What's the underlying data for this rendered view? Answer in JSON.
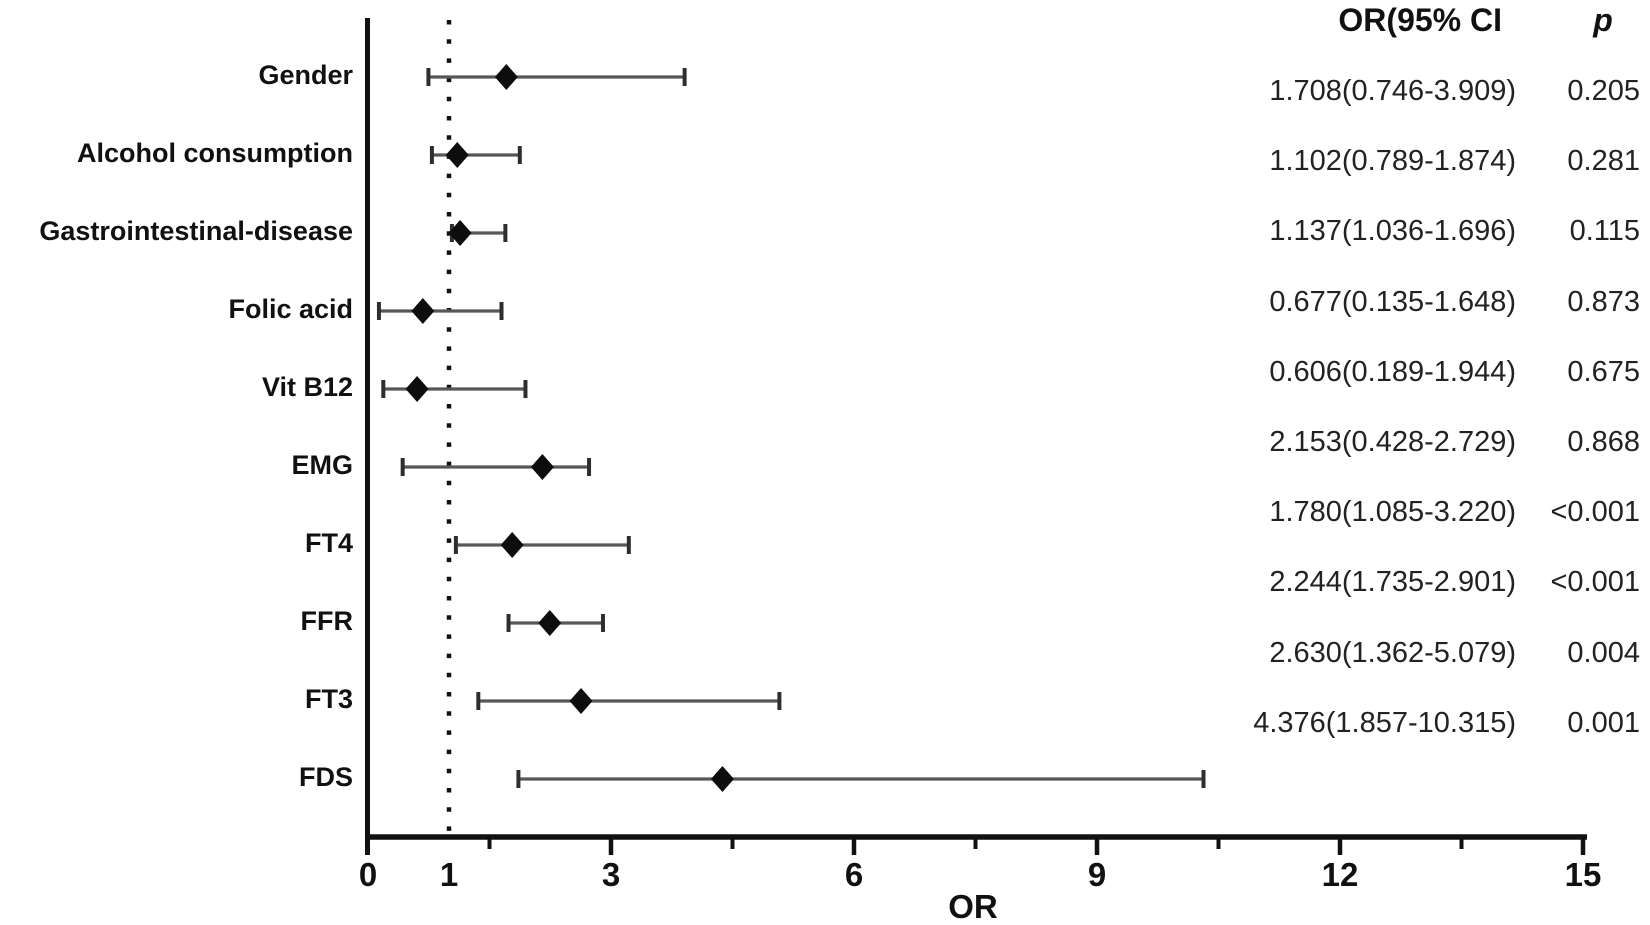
{
  "columns": {
    "or_header": "OR(95% CI",
    "p_header": "p"
  },
  "chart_data": {
    "type": "forest",
    "title": "",
    "xlabel": "OR",
    "xlim": [
      0,
      15
    ],
    "grid": false,
    "reference_line_x": 1,
    "x_tick_values": [
      0,
      1,
      3,
      6,
      9,
      12,
      15
    ],
    "x_tick_labels": [
      "0",
      "1",
      "3",
      "6",
      "9",
      "12",
      "15"
    ],
    "x_major_ticks": [
      3,
      6,
      9,
      12,
      15
    ],
    "x_minor_ticks": [
      1.5,
      4.5,
      7.5,
      10.5,
      13.5
    ],
    "rows": [
      {
        "label": "Gender",
        "or": 1.708,
        "ci_low": 0.746,
        "ci_high": 3.909,
        "or_ci_text": "1.708(0.746-3.909)",
        "p_text": "0.205"
      },
      {
        "label": "Alcohol consumption",
        "or": 1.102,
        "ci_low": 0.789,
        "ci_high": 1.874,
        "or_ci_text": "1.102(0.789-1.874)",
        "p_text": "0.281"
      },
      {
        "label": "Gastrointestinal-disease",
        "or": 1.137,
        "ci_low": 1.036,
        "ci_high": 1.696,
        "or_ci_text": "1.137(1.036-1.696)",
        "p_text": "0.115"
      },
      {
        "label": "Folic acid",
        "or": 0.677,
        "ci_low": 0.135,
        "ci_high": 1.648,
        "or_ci_text": "0.677(0.135-1.648)",
        "p_text": "0.873"
      },
      {
        "label": "Vit B12",
        "or": 0.606,
        "ci_low": 0.189,
        "ci_high": 1.944,
        "or_ci_text": "0.606(0.189-1.944)",
        "p_text": "0.675"
      },
      {
        "label": "EMG",
        "or": 2.153,
        "ci_low": 0.428,
        "ci_high": 2.729,
        "or_ci_text": "2.153(0.428-2.729)",
        "p_text": "0.868"
      },
      {
        "label": "FT4",
        "or": 1.78,
        "ci_low": 1.085,
        "ci_high": 3.22,
        "or_ci_text": "1.780(1.085-3.220)",
        "p_text": "<0.001"
      },
      {
        "label": "FFR",
        "or": 2.244,
        "ci_low": 1.735,
        "ci_high": 2.901,
        "or_ci_text": "2.244(1.735-2.901)",
        "p_text": "<0.001"
      },
      {
        "label": "FT3",
        "or": 2.63,
        "ci_low": 1.362,
        "ci_high": 5.079,
        "or_ci_text": "2.630(1.362-5.079)",
        "p_text": "0.004"
      },
      {
        "label": "FDS",
        "or": 4.376,
        "ci_low": 1.857,
        "ci_high": 10.315,
        "or_ci_text": "4.376(1.857-10.315)",
        "p_text": "0.001"
      }
    ],
    "colors": {
      "marker": "#0d0d0d",
      "error_bar": "#575757",
      "error_bar_cap": "#2e2e2e",
      "axis": "#111111",
      "reference_line": "#111111",
      "text": "#1b1b1b"
    }
  }
}
